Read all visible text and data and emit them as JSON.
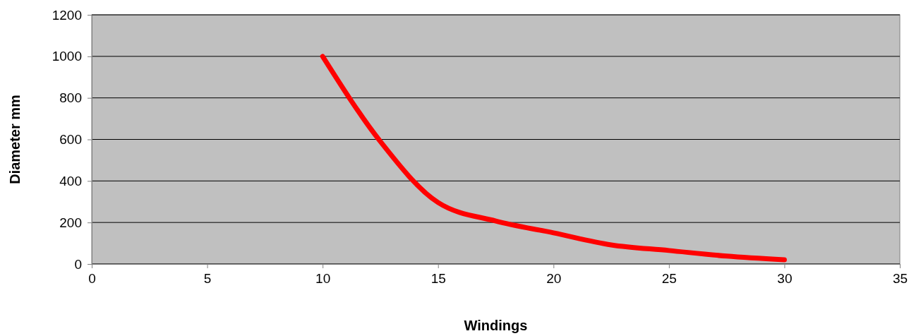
{
  "chart_data": {
    "type": "line",
    "xlabel": "Windings",
    "ylabel": "Diameter mm",
    "x": [
      10,
      12.5,
      15,
      17.5,
      20,
      22.5,
      25,
      27.5,
      30
    ],
    "series": [
      {
        "color": "#ff0000",
        "values": [
          1000,
          590,
          296,
          207,
          150,
          92,
          65,
          38,
          20
        ]
      }
    ],
    "xlim": [
      0,
      35
    ],
    "xticks": [
      0,
      5,
      10,
      15,
      20,
      25,
      30,
      35
    ],
    "ylim": [
      0,
      1200
    ],
    "yticks": [
      0,
      200,
      400,
      600,
      800,
      1000,
      1200
    ],
    "grid": "y",
    "marker": "none",
    "line_style": "solid"
  }
}
